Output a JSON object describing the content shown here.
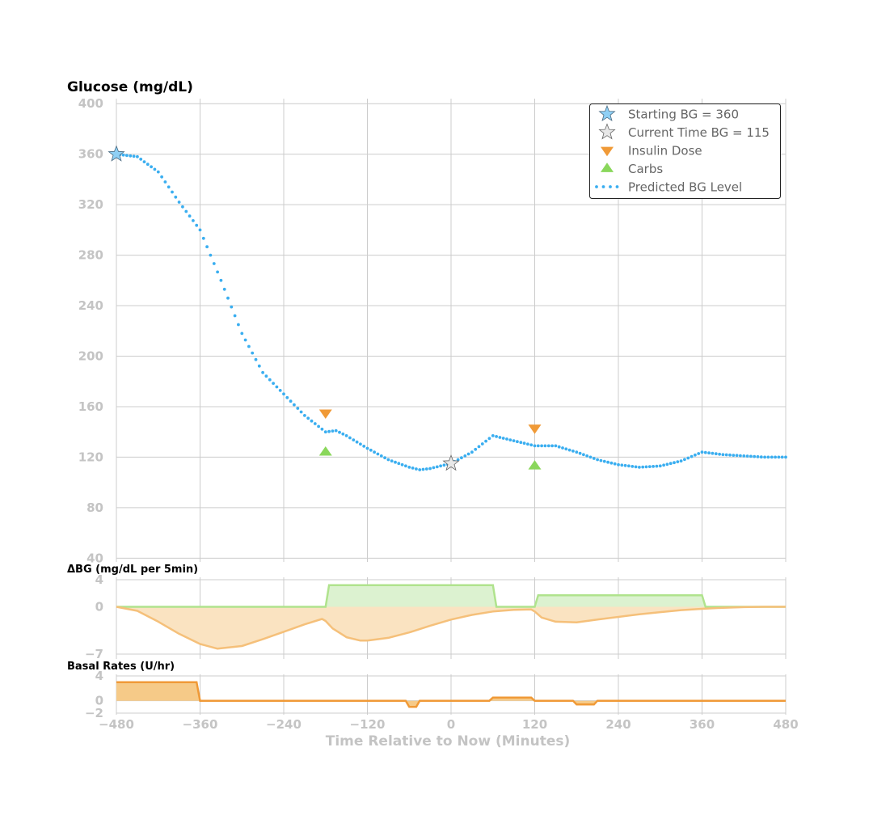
{
  "colors": {
    "bg_line": "#3aaef0",
    "insulin": "#f09a37",
    "insulin_fill": "#fae3c1",
    "insulin_line": "#f5c07a",
    "carbs": "#8ad75b",
    "carbs_fill": "#dcf2d0",
    "carbs_line": "#b0e38d",
    "basal_fill": "#f6ca88",
    "start_star": "#8fd0f5",
    "current_star": "#e8e8e8",
    "grid": "#cccccc",
    "tick": "#c4c4c4"
  },
  "chart_data": [
    {
      "id": "glucose",
      "type": "line",
      "title": "Glucose (mg/dL)",
      "xlim": [
        -480,
        480
      ],
      "ylim": [
        37,
        404
      ],
      "xticks": [
        -480,
        -360,
        -240,
        -120,
        0,
        120,
        240,
        360,
        480
      ],
      "yticks": [
        40,
        80,
        120,
        160,
        200,
        240,
        280,
        320,
        360,
        400
      ],
      "ytick_labels": [
        "40",
        "80",
        "120",
        "160",
        "200",
        "240",
        "280",
        "320",
        "360",
        "400"
      ],
      "grid": true,
      "legend_position": "top-right",
      "legend": [
        {
          "key": "start",
          "label": "Starting BG =  360"
        },
        {
          "key": "current",
          "label": "Current Time BG =  115"
        },
        {
          "key": "insulin",
          "label": "Insulin Dose"
        },
        {
          "key": "carbs",
          "label": "Carbs"
        },
        {
          "key": "predicted",
          "label": "Predicted BG Level"
        }
      ],
      "predicted_bg": {
        "x": [
          -480,
          -450,
          -420,
          -390,
          -360,
          -330,
          -300,
          -270,
          -240,
          -210,
          -180,
          -165,
          -150,
          -120,
          -90,
          -60,
          -45,
          -30,
          0,
          30,
          60,
          90,
          120,
          150,
          180,
          210,
          240,
          270,
          300,
          330,
          360,
          390,
          420,
          450,
          480
        ],
        "y": [
          360,
          358,
          346,
          322,
          300,
          260,
          218,
          187,
          170,
          153,
          140,
          141,
          137,
          127,
          118,
          112,
          110,
          111,
          115,
          124,
          137,
          133,
          129,
          129,
          124,
          118,
          114,
          112,
          113,
          117,
          124,
          122,
          121,
          120,
          120
        ]
      },
      "starting_bg": {
        "x": -480,
        "y": 360
      },
      "current_bg": {
        "x": 0,
        "y": 115
      },
      "insulin_doses": [
        {
          "x": -180,
          "y": 155
        },
        {
          "x": 120,
          "y": 143
        }
      ],
      "carbs": [
        {
          "x": -180,
          "y": 124
        },
        {
          "x": 120,
          "y": 113
        }
      ]
    },
    {
      "id": "delta_bg",
      "type": "area",
      "title": "ΔBG (mg/dL per 5min)",
      "xlim": [
        -480,
        480
      ],
      "ylim": [
        -7,
        4
      ],
      "yticks": [
        4,
        0,
        -7
      ],
      "ytick_labels": [
        "4",
        "0",
        "−7"
      ],
      "grid": true,
      "carbs_effect": {
        "x": [
          -480,
          -180,
          -175,
          60,
          65,
          120,
          125,
          360,
          365,
          480
        ],
        "y": [
          0,
          0,
          3.2,
          3.2,
          0,
          0,
          1.7,
          1.7,
          0,
          0
        ]
      },
      "insulin_effect": {
        "x": [
          -480,
          -450,
          -420,
          -390,
          -360,
          -335,
          -300,
          -270,
          -240,
          -210,
          -185,
          -180,
          -170,
          -150,
          -130,
          -120,
          -90,
          -60,
          -30,
          0,
          30,
          60,
          90,
          115,
          120,
          130,
          150,
          180,
          210,
          240,
          270,
          300,
          330,
          360,
          390,
          420,
          450,
          480
        ],
        "y": [
          0,
          -0.6,
          -2.2,
          -4.0,
          -5.5,
          -6.2,
          -5.8,
          -4.8,
          -3.7,
          -2.6,
          -1.8,
          -2.1,
          -3.2,
          -4.5,
          -5.0,
          -5.0,
          -4.6,
          -3.8,
          -2.8,
          -1.9,
          -1.2,
          -0.7,
          -0.45,
          -0.4,
          -0.7,
          -1.6,
          -2.2,
          -2.3,
          -1.9,
          -1.5,
          -1.1,
          -0.8,
          -0.5,
          -0.3,
          -0.15,
          -0.05,
          0,
          0
        ]
      }
    },
    {
      "id": "basal",
      "type": "area",
      "title": "Basal Rates (U/hr)",
      "xlim": [
        -480,
        480
      ],
      "ylim": [
        -2,
        4
      ],
      "xticks": [
        -480,
        -360,
        -240,
        -120,
        0,
        120,
        240,
        360,
        480
      ],
      "xtick_labels": [
        "−480",
        "−360",
        "−240",
        "−120",
        "0",
        "120",
        "240",
        "360",
        "480"
      ],
      "yticks": [
        4,
        0,
        -2
      ],
      "ytick_labels": [
        "4",
        "0",
        "−2"
      ],
      "xlabel": "Time Relative to Now (Minutes)",
      "grid": true,
      "basal": {
        "x": [
          -480,
          -365,
          -360,
          -65,
          -60,
          -50,
          -45,
          55,
          60,
          115,
          120,
          175,
          180,
          205,
          210,
          480
        ],
        "y": [
          3,
          3,
          0,
          0,
          -1,
          -1,
          0,
          0,
          0.5,
          0.5,
          0,
          0,
          -0.6,
          -0.6,
          0,
          0
        ]
      }
    }
  ]
}
